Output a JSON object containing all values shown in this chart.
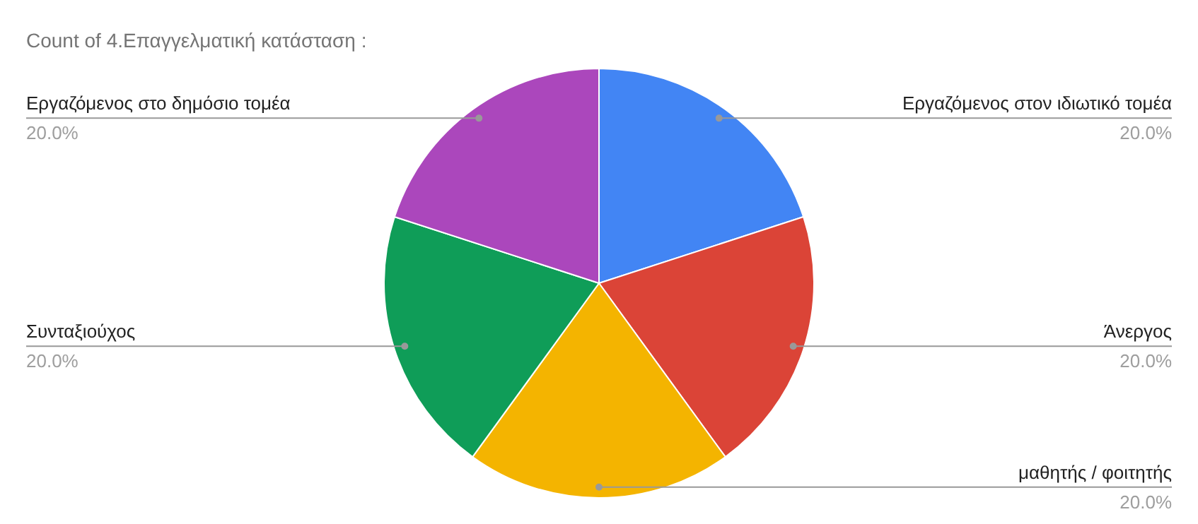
{
  "chart_data": {
    "type": "pie",
    "title": "Count of 4.Επαγγελματική κατάσταση  :",
    "categories": [
      "Εργαζόμενος στον ιδιωτικό τομέα",
      "Άνεργος",
      "μαθητής / φοιτητής",
      "Συνταξιούχος",
      "Εργαζόμενος στο δημόσιο τομέα"
    ],
    "values": [
      20,
      20,
      20,
      20,
      20
    ],
    "colors": [
      "#4285f4",
      "#db4437",
      "#f4b400",
      "#0f9d58",
      "#ab47bc"
    ],
    "value_labels": [
      "20.0%",
      "20.0%",
      "20.0%",
      "20.0%",
      "20.0%"
    ]
  }
}
